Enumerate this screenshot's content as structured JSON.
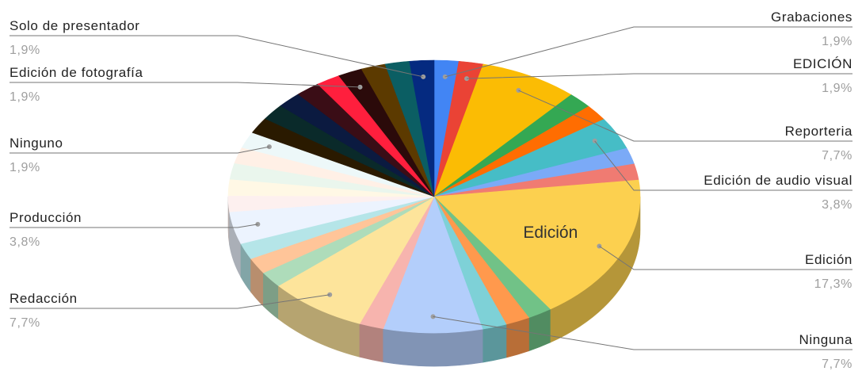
{
  "chart_data": {
    "type": "pie",
    "style": "3d",
    "legend": "none",
    "slices": [
      {
        "label": "Grabaciones",
        "value": 1.9,
        "display": "1,9%",
        "color": "#4285f4"
      },
      {
        "label": "EDICIÓN",
        "value": 1.9,
        "display": "1,9%",
        "color": "#ea4335"
      },
      {
        "label": "Reporteria",
        "value": 7.7,
        "display": "7,7%",
        "color": "#fbbc04"
      },
      {
        "label": "",
        "value": 1.9,
        "color": "#34a853"
      },
      {
        "label": "",
        "value": 1.9,
        "color": "#ff6d01"
      },
      {
        "label": "Edición de audio visual",
        "value": 3.8,
        "display": "3,8%",
        "color": "#46bdc6"
      },
      {
        "label": "",
        "value": 1.9,
        "color": "#7baaf7"
      },
      {
        "label": "",
        "value": 1.9,
        "color": "#f07b72"
      },
      {
        "label": "Edición",
        "value": 17.3,
        "display": "17,3%",
        "color": "#fcd04f",
        "inner_label": "Edición"
      },
      {
        "label": "",
        "value": 1.9,
        "color": "#71c287"
      },
      {
        "label": "",
        "value": 1.9,
        "color": "#ff994d"
      },
      {
        "label": "",
        "value": 1.9,
        "color": "#7ed1d7"
      },
      {
        "label": "Ninguna",
        "value": 7.7,
        "display": "7,7%",
        "color": "#b3cefb"
      },
      {
        "label": "",
        "value": 1.9,
        "color": "#f7b4ae"
      },
      {
        "label": "Redacción",
        "value": 7.7,
        "display": "7,7%",
        "color": "#fde49b"
      },
      {
        "label": "",
        "value": 1.9,
        "color": "#aedcba"
      },
      {
        "label": "",
        "value": 1.9,
        "color": "#ffc599"
      },
      {
        "label": "",
        "value": 1.9,
        "color": "#b5e5e8"
      },
      {
        "label": "Producción",
        "value": 3.8,
        "display": "3,8%",
        "color": "#ecf3fe"
      },
      {
        "label": "",
        "value": 1.9,
        "color": "#fdf0ef"
      },
      {
        "label": "",
        "value": 1.9,
        "color": "#fff8e5"
      },
      {
        "label": "",
        "value": 1.9,
        "color": "#eaf6ed"
      },
      {
        "label": "",
        "value": 1.9,
        "color": "#fff0e6"
      },
      {
        "label": "Ninguno",
        "value": 1.9,
        "display": "1,9%",
        "color": "#edf8f9"
      },
      {
        "label": "",
        "value": 1.9,
        "color": "#2a1a00"
      },
      {
        "label": "",
        "value": 1.9,
        "color": "#0a2a2a"
      },
      {
        "label": "",
        "value": 1.9,
        "color": "#0b1a40"
      },
      {
        "label": "",
        "value": 1.9,
        "color": "#3a0d16"
      },
      {
        "label": "",
        "value": 1.9,
        "color": "#ff1f3d"
      },
      {
        "label": "Edición de fotografía",
        "value": 1.9,
        "display": "1,9%",
        "color": "#2b0a0a"
      },
      {
        "label": "",
        "value": 1.9,
        "color": "#5c3a00"
      },
      {
        "label": "",
        "value": 1.9,
        "color": "#0b5e63"
      },
      {
        "label": "Solo de presentador",
        "value": 1.9,
        "display": "1,9%",
        "color": "#052a80"
      }
    ]
  }
}
